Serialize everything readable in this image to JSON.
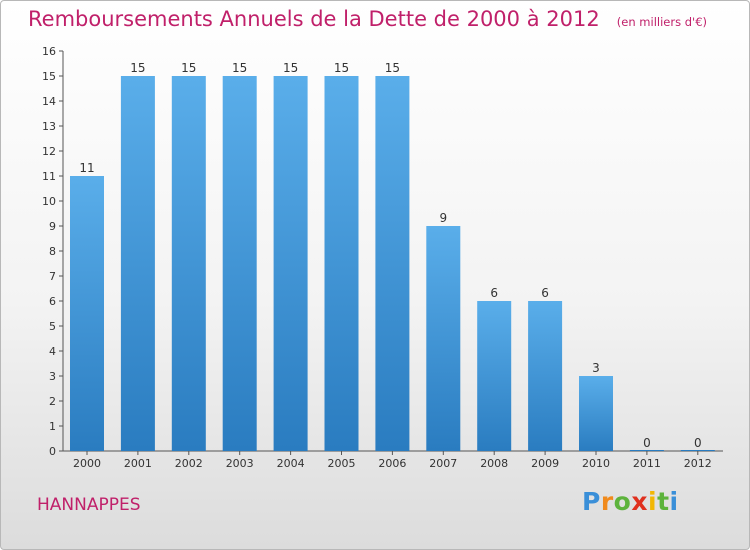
{
  "header": {
    "title": "Remboursements Annuels de la Dette de 2000 à 2012",
    "unit": "(en milliers d'€)"
  },
  "footer": {
    "commune": "HANNAPPES",
    "logo_letters": [
      {
        "ch": "P",
        "color": "#3a8fd8"
      },
      {
        "ch": "r",
        "color": "#f08a1c"
      },
      {
        "ch": "o",
        "color": "#5db33c"
      },
      {
        "ch": "x",
        "color": "#e0301e"
      },
      {
        "ch": "i",
        "color": "#f2b705"
      },
      {
        "ch": "t",
        "color": "#5db33c"
      },
      {
        "ch": "i",
        "color": "#3a8fd8"
      }
    ]
  },
  "colors": {
    "title": "#c0206a",
    "bar_top": "#5aaeea",
    "bar_bottom": "#2a7cc0"
  },
  "chart_data": {
    "type": "bar",
    "title": "Remboursements Annuels de la Dette de 2000 à 2012",
    "ylabel": "",
    "xlabel": "",
    "categories": [
      "2000",
      "2001",
      "2002",
      "2003",
      "2004",
      "2005",
      "2006",
      "2007",
      "2008",
      "2009",
      "2010",
      "2011",
      "2012"
    ],
    "values": [
      11,
      15,
      15,
      15,
      15,
      15,
      15,
      9,
      6,
      6,
      3,
      0,
      0
    ],
    "value_labels": [
      "11",
      "15",
      "15",
      "15",
      "15",
      "15",
      "15",
      "9",
      "6",
      "6",
      "3",
      "0",
      "0"
    ],
    "y_ticks": [
      "0",
      "1",
      "2",
      "3",
      "4",
      "5",
      "6",
      "7",
      "8",
      "9",
      "10",
      "11",
      "12",
      "13",
      "14",
      "15",
      "16"
    ],
    "ylim": [
      0,
      16
    ],
    "grid": false,
    "legend": "none"
  }
}
